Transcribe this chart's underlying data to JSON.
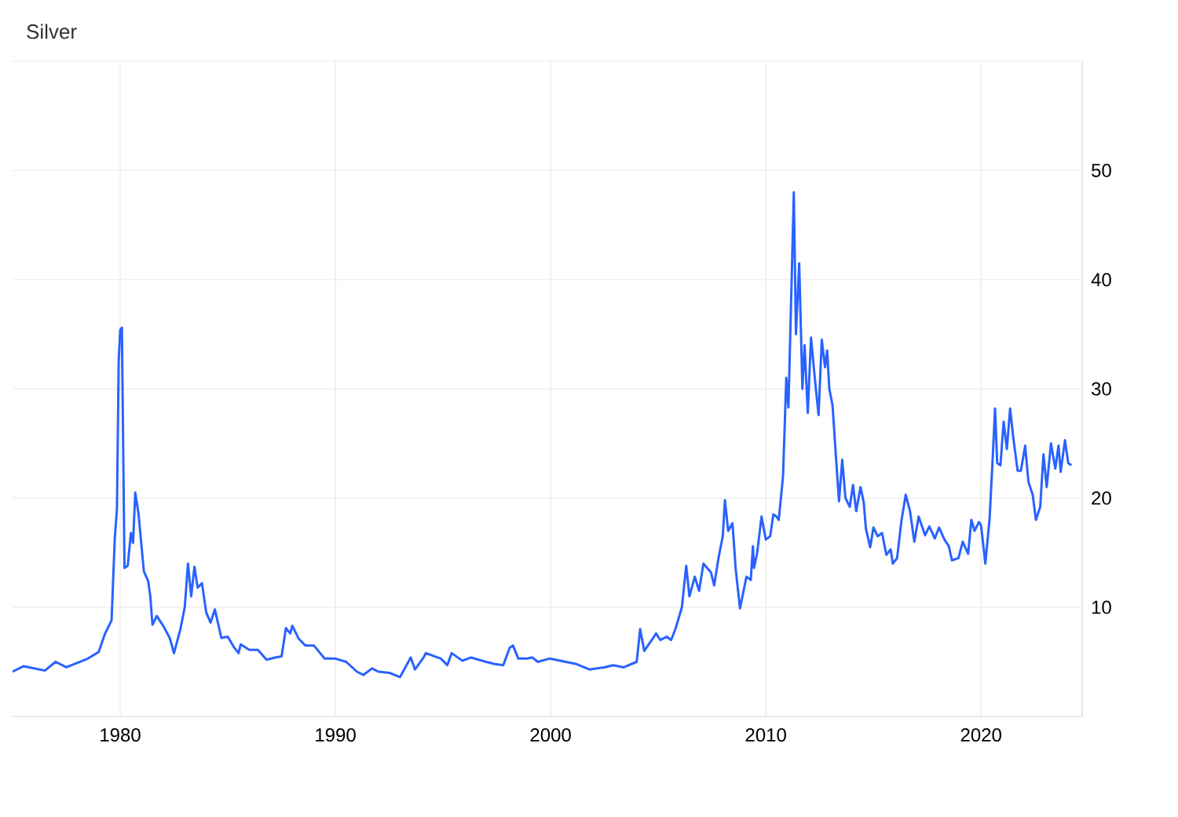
{
  "chart_data": {
    "type": "line",
    "title": "Silver",
    "x": [
      1975.0,
      1975.5,
      1976.0,
      1976.5,
      1977.0,
      1977.5,
      1978.0,
      1978.5,
      1979.0,
      1979.3,
      1979.6,
      1979.75,
      1979.85,
      1979.93,
      1980.0,
      1980.08,
      1980.2,
      1980.35,
      1980.5,
      1980.6,
      1980.7,
      1980.85,
      1981.1,
      1981.3,
      1981.4,
      1981.5,
      1981.7,
      1982.0,
      1982.3,
      1982.5,
      1982.8,
      1983.0,
      1983.15,
      1983.3,
      1983.45,
      1983.6,
      1983.8,
      1984.0,
      1984.2,
      1984.4,
      1984.7,
      1985.0,
      1985.3,
      1985.5,
      1985.6,
      1986.0,
      1986.4,
      1986.8,
      1987.2,
      1987.5,
      1987.7,
      1987.9,
      1988.0,
      1988.3,
      1988.6,
      1989.0,
      1989.5,
      1990.0,
      1990.5,
      1991.0,
      1991.3,
      1991.7,
      1992.0,
      1992.5,
      1993.0,
      1993.5,
      1993.7,
      1994.1,
      1994.2,
      1994.9,
      1995.2,
      1995.4,
      1995.9,
      1996.3,
      1997.0,
      1997.4,
      1997.8,
      1998.1,
      1998.25,
      1998.5,
      1998.9,
      1999.15,
      1999.4,
      1999.95,
      2000.7,
      2001.2,
      2001.8,
      2002.5,
      2002.9,
      2003.4,
      2004.0,
      2004.16,
      2004.35,
      2004.7,
      2004.9,
      2005.1,
      2005.4,
      2005.6,
      2005.8,
      2006.1,
      2006.3,
      2006.45,
      2006.7,
      2006.9,
      2007.1,
      2007.45,
      2007.6,
      2007.8,
      2008.0,
      2008.1,
      2008.25,
      2008.45,
      2008.6,
      2008.8,
      2009.1,
      2009.3,
      2009.4,
      2009.45,
      2009.6,
      2009.8,
      2010.0,
      2010.2,
      2010.35,
      2010.5,
      2010.6,
      2010.8,
      2010.95,
      2011.05,
      2011.2,
      2011.3,
      2011.4,
      2011.55,
      2011.7,
      2011.8,
      2011.95,
      2012.1,
      2012.3,
      2012.45,
      2012.6,
      2012.75,
      2012.85,
      2012.95,
      2013.1,
      2013.25,
      2013.4,
      2013.55,
      2013.7,
      2013.9,
      2014.05,
      2014.2,
      2014.4,
      2014.55,
      2014.65,
      2014.85,
      2015.0,
      2015.2,
      2015.4,
      2015.6,
      2015.8,
      2015.9,
      2016.1,
      2016.3,
      2016.5,
      2016.7,
      2016.9,
      2017.1,
      2017.4,
      2017.6,
      2017.85,
      2018.05,
      2018.3,
      2018.5,
      2018.65,
      2018.95,
      2019.15,
      2019.4,
      2019.55,
      2019.7,
      2019.9,
      2020.0,
      2020.2,
      2020.4,
      2020.55,
      2020.65,
      2020.75,
      2020.9,
      2021.05,
      2021.2,
      2021.35,
      2021.5,
      2021.7,
      2021.85,
      2022.05,
      2022.2,
      2022.4,
      2022.55,
      2022.75,
      2022.9,
      2023.05,
      2023.25,
      2023.45,
      2023.6,
      2023.7,
      2023.9,
      2024.05,
      2024.2
    ],
    "series": [
      {
        "color": "#2962ff",
        "values": [
          4.1,
          4.6,
          4.4,
          4.2,
          5.0,
          4.5,
          4.9,
          5.3,
          5.9,
          7.6,
          8.8,
          16.3,
          19,
          32.5,
          35.4,
          35.6,
          13.6,
          13.8,
          16.8,
          15.9,
          20.5,
          18.6,
          13.3,
          12.4,
          11,
          8.4,
          9.2,
          8.3,
          7.2,
          5.8,
          8,
          10,
          14,
          11,
          13.7,
          11.8,
          12.2,
          9.5,
          8.6,
          9.8,
          7.2,
          7.3,
          6.3,
          5.8,
          6.6,
          6.1,
          6.1,
          5.2,
          5.4,
          5.5,
          8.1,
          7.6,
          8.3,
          7.1,
          6.5,
          6.5,
          5.3,
          5.3,
          5.0,
          4.1,
          3.8,
          4.4,
          4.1,
          4.0,
          3.6,
          5.4,
          4.3,
          5.4,
          5.8,
          5.3,
          4.7,
          5.8,
          5.1,
          5.4,
          5.0,
          4.8,
          4.7,
          6.3,
          6.5,
          5.3,
          5.3,
          5.4,
          5.0,
          5.3,
          5.0,
          4.8,
          4.3,
          4.5,
          4.7,
          4.5,
          5.0,
          8.0,
          6.0,
          7.0,
          7.6,
          7.0,
          7.3,
          7.0,
          8.0,
          10,
          13.8,
          11,
          12.8,
          11.5,
          14,
          13.2,
          12.0,
          14.5,
          16.5,
          19.8,
          17,
          17.7,
          13.5,
          9.9,
          12.8,
          12.5,
          15.6,
          13.6,
          15,
          18.3,
          16.2,
          16.5,
          18.5,
          18.3,
          18.0,
          22,
          31,
          28.3,
          40,
          48,
          35,
          41.5,
          30,
          34,
          27.8,
          34.7,
          30.5,
          27.6,
          34.5,
          32,
          33.5,
          30,
          28.5,
          24,
          19.7,
          23.5,
          20,
          19.2,
          21.2,
          18.8,
          21,
          19.6,
          17.2,
          15.5,
          17.3,
          16.5,
          16.8,
          14.8,
          15.3,
          14.0,
          14.5,
          17.9,
          20.3,
          18.8,
          16,
          18.3,
          16.6,
          17.4,
          16.3,
          17.3,
          16.2,
          15.6,
          14.3,
          14.5,
          16.0,
          14.9,
          18.0,
          17,
          17.8,
          17.5,
          14.0,
          18.2,
          24,
          28.2,
          23.2,
          23,
          27,
          24.5,
          28.2,
          25.5,
          22.5,
          22.5,
          24.8,
          21.5,
          20.3,
          18,
          19.2,
          24,
          21,
          25,
          22.7,
          24.8,
          22.4,
          25.3,
          23.2,
          23.0
        ]
      }
    ],
    "xlim": [
      1975,
      2024.7
    ],
    "ylim": [
      0,
      60
    ],
    "xticks": [
      1980,
      1990,
      2000,
      2010,
      2020
    ],
    "yticks": [
      10,
      20,
      30,
      40,
      50
    ],
    "grid": true
  }
}
